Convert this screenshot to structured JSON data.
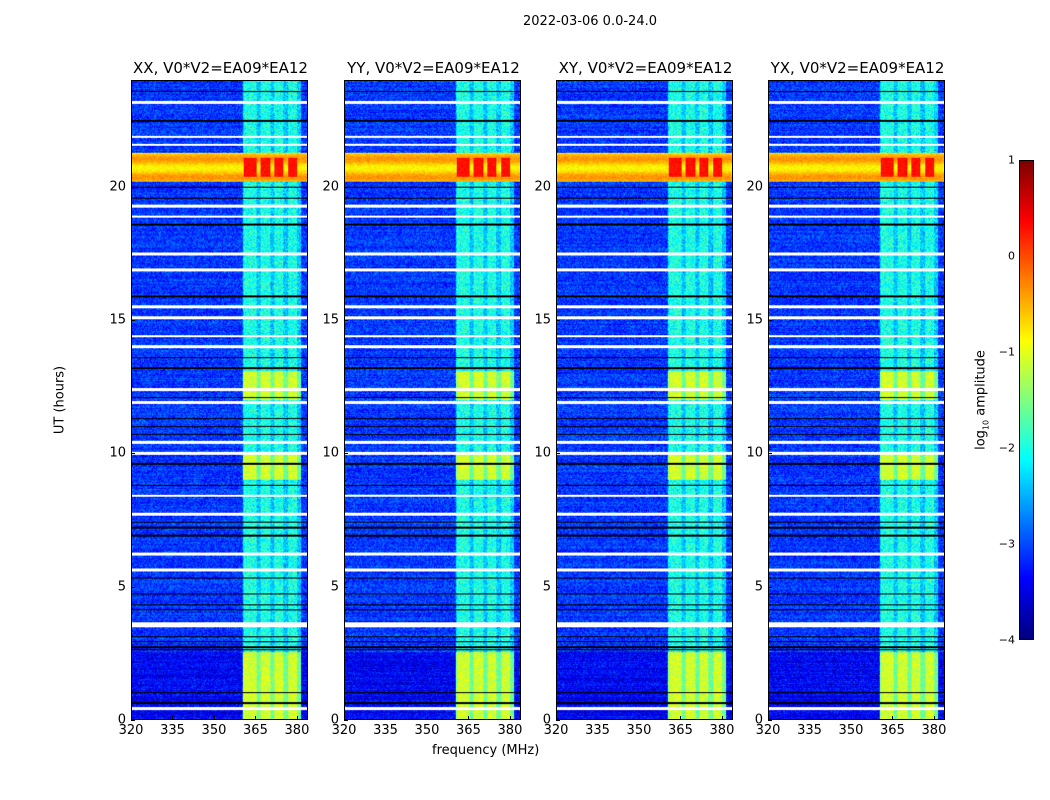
{
  "chart_data": {
    "type": "heatmap",
    "title": "2022-03-06 0.0-24.0",
    "xlabel": "frequency (MHz)",
    "ylabel": "UT (hours)",
    "xlim": [
      320,
      384
    ],
    "ylim": [
      0,
      24
    ],
    "xticks": [
      "320",
      "335",
      "350",
      "365",
      "380"
    ],
    "xtick_values": [
      320,
      335,
      350,
      365,
      380
    ],
    "yticks": [
      "0",
      "5",
      "10",
      "15",
      "20"
    ],
    "ytick_values": [
      0,
      5,
      10,
      15,
      20
    ],
    "panels": [
      {
        "title": "XX, V0*V2=EA09*EA12"
      },
      {
        "title": "YY, V0*V2=EA09*EA12"
      },
      {
        "title": "XY, V0*V2=EA09*EA12"
      },
      {
        "title": "YX, V0*V2=EA09*EA12"
      }
    ],
    "colorbar": {
      "label_prefix": "log",
      "label_sub": "10",
      "label_suffix": " amplitude",
      "range": [
        -4,
        1
      ],
      "ticks": [
        "1",
        "0",
        "−1",
        "−2",
        "−3",
        "−4"
      ],
      "tick_values": [
        1,
        0,
        -1,
        -2,
        -3,
        -4
      ],
      "colormap": "jet"
    },
    "features": {
      "background_level": -3.1,
      "rfi_band_mhz": [
        360.5,
        382
      ],
      "rfi_subchannels_mhz": [
        [
          361,
          365.5
        ],
        [
          367,
          370.5
        ],
        [
          372,
          375.5
        ],
        [
          377,
          380.5
        ]
      ],
      "rfi_level": -2.3,
      "strong_band_hours": [
        20.2,
        21.3
      ],
      "strong_band_level": -0.6,
      "strong_band_rfi_level": 0.3,
      "rfi_bright_blocks_hours": [
        [
          0,
          2.5
        ],
        [
          9.0,
          10.0
        ],
        [
          12.0,
          13.1
        ]
      ],
      "rfi_bright_level": -1.3,
      "flagged_hours": [
        23.2,
        21.9,
        21.6,
        19.3,
        18.9,
        17.5,
        16.9,
        15.5,
        15.1,
        14.4,
        14.0,
        12.4,
        11.9,
        10.4,
        10.0,
        8.4,
        7.7,
        6.2,
        5.6,
        3.6,
        3.5,
        0.4
      ],
      "dark_line_hours": [
        23.6,
        22.5,
        20.0,
        19.6,
        18.6,
        15.9,
        13.6,
        13.2,
        12.1,
        11.3,
        11.0,
        10.7,
        9.6,
        8.8,
        7.4,
        7.2,
        6.9,
        5.3,
        4.7,
        4.3,
        4.1,
        3.1,
        2.9,
        2.7,
        2.6,
        1.0,
        0.6
      ]
    }
  }
}
